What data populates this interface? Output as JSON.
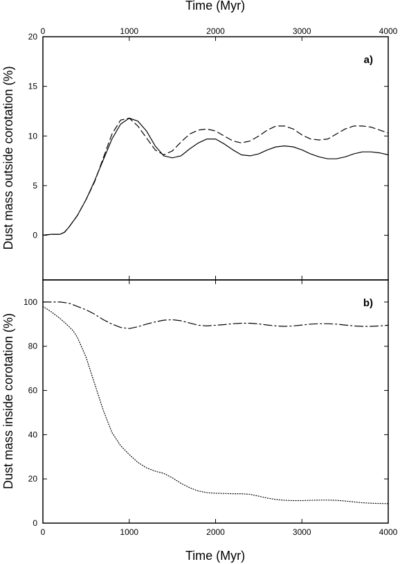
{
  "chart_data": [
    {
      "panel_label": "a)",
      "type": "line",
      "xlabel": "Time (Myr)",
      "ylabel": "Dust mass outside corotation (%)",
      "xlim": [
        0,
        4000
      ],
      "ylim": [
        -4.5,
        20
      ],
      "xticks": [
        0,
        1000,
        2000,
        3000,
        4000
      ],
      "yticks": [
        0,
        5,
        10,
        15,
        20
      ],
      "x_axis_position": "top",
      "series": [
        {
          "style": "solid",
          "x": [
            0,
            100,
            200,
            250,
            300,
            400,
            500,
            600,
            700,
            800,
            900,
            1000,
            1100,
            1200,
            1300,
            1400,
            1500,
            1600,
            1700,
            1800,
            1900,
            2000,
            2100,
            2200,
            2300,
            2400,
            2500,
            2600,
            2700,
            2800,
            2900,
            3000,
            3100,
            3200,
            3300,
            3400,
            3500,
            3600,
            3700,
            3800,
            3900,
            4000
          ],
          "y": [
            0,
            0.1,
            0.1,
            0.3,
            0.8,
            2.0,
            3.6,
            5.5,
            7.6,
            9.7,
            11.2,
            11.8,
            11.5,
            10.5,
            9.0,
            8.0,
            7.8,
            8.0,
            8.7,
            9.3,
            9.7,
            9.7,
            9.2,
            8.6,
            8.1,
            8.0,
            8.2,
            8.6,
            8.9,
            9.0,
            8.9,
            8.6,
            8.2,
            7.9,
            7.7,
            7.7,
            7.9,
            8.2,
            8.4,
            8.4,
            8.3,
            8.1
          ]
        },
        {
          "style": "dashed",
          "x": [
            0,
            100,
            200,
            250,
            300,
            400,
            500,
            600,
            700,
            800,
            900,
            1000,
            1100,
            1200,
            1300,
            1400,
            1500,
            1600,
            1700,
            1800,
            1900,
            2000,
            2100,
            2200,
            2300,
            2400,
            2500,
            2600,
            2700,
            2800,
            2900,
            3000,
            3100,
            3200,
            3300,
            3400,
            3500,
            3600,
            3700,
            3800,
            3900,
            4000
          ],
          "y": [
            0,
            0.1,
            0.1,
            0.3,
            0.8,
            2.0,
            3.6,
            5.4,
            7.8,
            10.2,
            11.6,
            11.8,
            11.0,
            9.8,
            8.6,
            8.1,
            8.5,
            9.4,
            10.2,
            10.6,
            10.7,
            10.5,
            10.0,
            9.5,
            9.3,
            9.5,
            10.0,
            10.6,
            11.0,
            11.0,
            10.7,
            10.1,
            9.7,
            9.6,
            9.7,
            10.2,
            10.7,
            11.0,
            11.0,
            10.9,
            10.6,
            10.3
          ]
        }
      ]
    },
    {
      "panel_label": "b)",
      "type": "line",
      "xlabel": "Time (Myr)",
      "ylabel": "Dust mass inside corotation (%)",
      "xlim": [
        0,
        4000
      ],
      "ylim": [
        0,
        110
      ],
      "xticks": [
        0,
        1000,
        2000,
        3000,
        4000
      ],
      "yticks": [
        0,
        20,
        40,
        60,
        80,
        100
      ],
      "x_axis_position": "bottom",
      "series": [
        {
          "style": "dash-dot",
          "x": [
            0,
            100,
            200,
            300,
            400,
            500,
            600,
            700,
            800,
            900,
            1000,
            1100,
            1200,
            1300,
            1400,
            1500,
            1600,
            1700,
            1800,
            1900,
            2000,
            2100,
            2200,
            2300,
            2400,
            2500,
            2600,
            2700,
            2800,
            2900,
            3000,
            3100,
            3200,
            3300,
            3400,
            3500,
            3600,
            3700,
            3800,
            3900,
            4000
          ],
          "y": [
            100,
            100,
            100,
            99.5,
            98,
            96.5,
            94.5,
            92,
            90,
            88.5,
            88,
            88.8,
            90,
            91,
            91.8,
            92,
            91.5,
            90.5,
            89.5,
            89.2,
            89.5,
            89.8,
            90.2,
            90.4,
            90.4,
            90.1,
            89.6,
            89.2,
            89,
            89.2,
            89.6,
            90,
            90.2,
            90.2,
            90,
            89.6,
            89.2,
            89,
            89,
            89.2,
            89.5
          ]
        },
        {
          "style": "dotted",
          "x": [
            0,
            100,
            200,
            300,
            350,
            400,
            500,
            600,
            700,
            800,
            900,
            1000,
            1100,
            1200,
            1300,
            1400,
            1500,
            1600,
            1700,
            1800,
            1900,
            2000,
            2100,
            2200,
            2300,
            2400,
            2500,
            2600,
            2700,
            2800,
            2900,
            3000,
            3100,
            3200,
            3300,
            3400,
            3500,
            3600,
            3700,
            3800,
            3900,
            4000
          ],
          "y": [
            98,
            95.5,
            92.5,
            89,
            87,
            84,
            75,
            63,
            51,
            41,
            35,
            31,
            27.5,
            25,
            23.5,
            22.5,
            20.5,
            18,
            16,
            14.5,
            13.8,
            13.5,
            13.4,
            13.3,
            13.3,
            13,
            12.2,
            11.3,
            10.7,
            10.3,
            10.2,
            10.2,
            10.3,
            10.4,
            10.4,
            10.3,
            10,
            9.6,
            9.2,
            9,
            8.9,
            8.8
          ]
        }
      ]
    }
  ]
}
